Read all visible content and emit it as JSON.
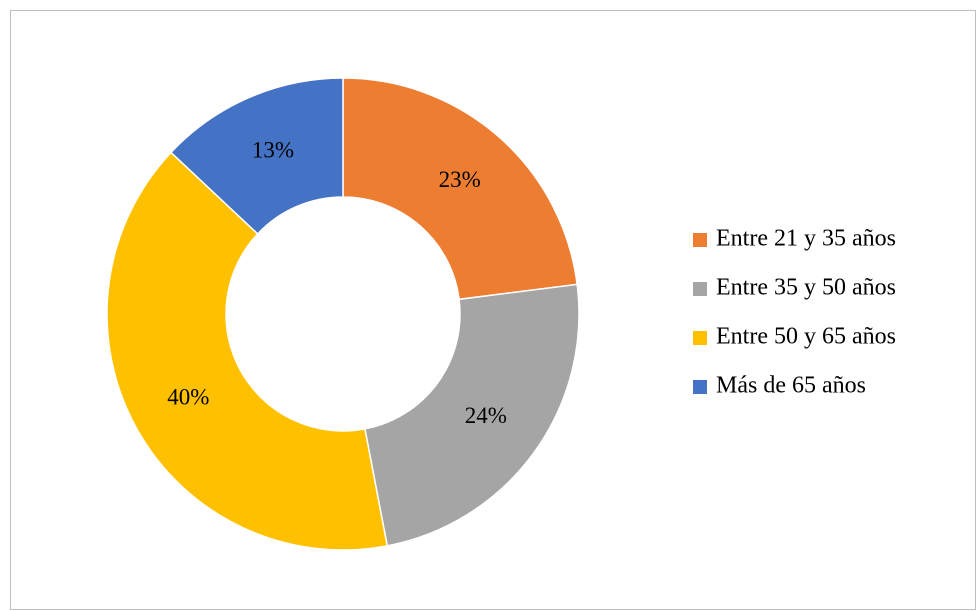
{
  "chart_data": {
    "type": "donut",
    "categories": [
      "Entre 21 y 35 años",
      "Entre 35 y 50 años",
      "Entre 50 y 65 años",
      "Más de 65 años"
    ],
    "values": [
      23,
      24,
      40,
      13
    ],
    "value_labels": [
      "23%",
      "24%",
      "40%",
      "13%"
    ],
    "colors": [
      "#ED7D31",
      "#A5A5A5",
      "#FFC000",
      "#4472C4"
    ],
    "legend": "right"
  }
}
